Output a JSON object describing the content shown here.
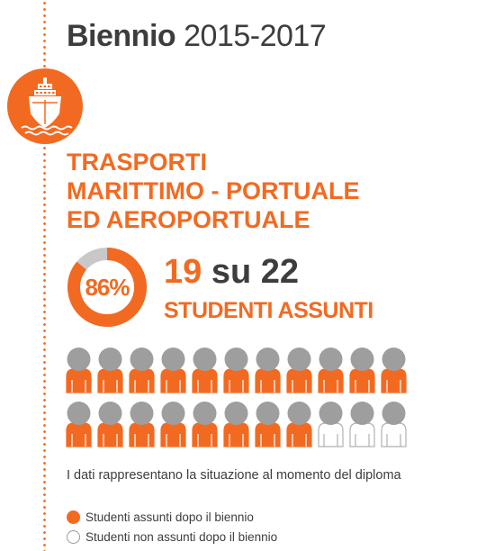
{
  "header": {
    "title_bold": "Biennio",
    "title_light": "2015-2017"
  },
  "badge": {
    "icon": "ship-icon",
    "color": "#f26a21"
  },
  "sector": {
    "lines": [
      "TRASPORTI",
      "MARITTIMO - PORTUALE",
      "ED AEROPORTUALE"
    ]
  },
  "stats": {
    "percent_label": "86%",
    "percent_value": 0.86,
    "hired": "19",
    "su": "su",
    "total": "22",
    "caption": "STUDENTI ASSUNTI"
  },
  "people": {
    "hired_count": 19,
    "total_count": 22,
    "per_row": 11,
    "hired_color": "#f26a21",
    "head_color": "#9e9e9e",
    "not_hired_color": "#ffffff"
  },
  "note": "I dati rappresentano la situazione al momento del diploma",
  "legend": {
    "hired_label": "Studenti assunti dopo il biennio",
    "not_hired_label": "Studenti non assunti dopo il biennio"
  }
}
